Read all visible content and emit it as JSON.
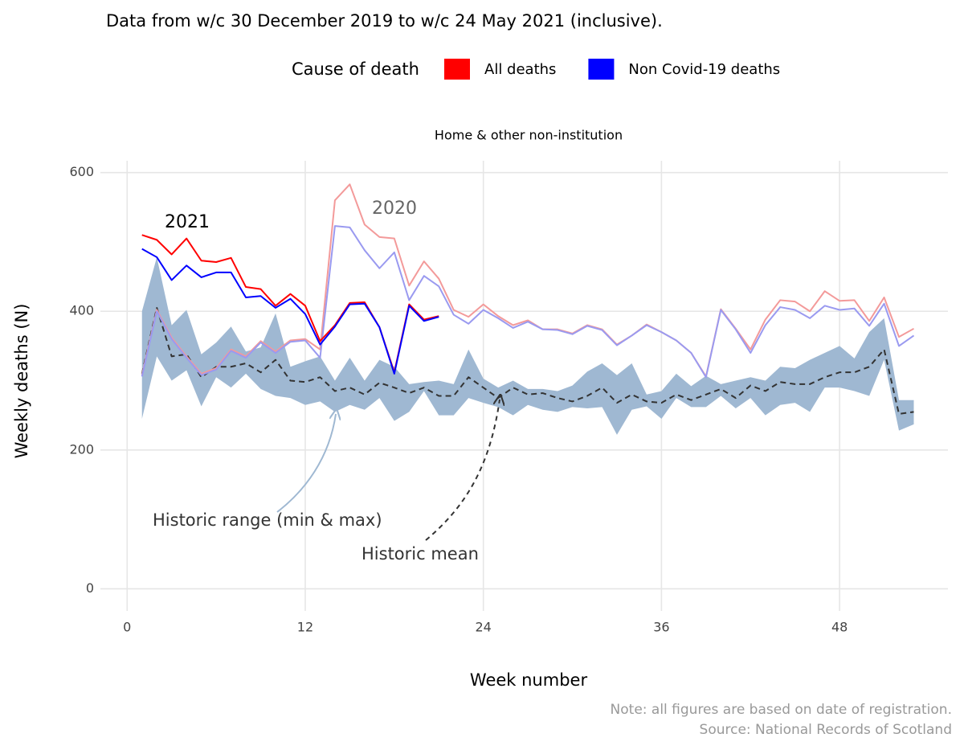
{
  "chart_data": {
    "type": "line",
    "subtitle": "Data from w/c 30 December 2019 to w/c 24 May 2021 (inclusive).",
    "legend_title": "Cause of death",
    "facet": "Home & other non-institution",
    "x_label": "Week number",
    "y_label": "Weekly deaths (N)",
    "notes": [
      "Note: all figures are based on date of registration.",
      "Source: National Records of Scotland"
    ],
    "xlim": [
      -1.8,
      55.3
    ],
    "ylim": [
      -32,
      617
    ],
    "xticks": [
      0,
      12,
      24,
      36,
      48
    ],
    "yticks": [
      0,
      200,
      400,
      600
    ],
    "grid": true,
    "series": [
      {
        "name": "All deaths",
        "label": "2021",
        "color": "#ff0000",
        "x": [
          1,
          2,
          3,
          4,
          5,
          6,
          7,
          8,
          9,
          10,
          11,
          12,
          13,
          14,
          15,
          16,
          17,
          18,
          19,
          20,
          21
        ],
        "values": [
          510,
          503,
          482,
          505,
          473,
          471,
          477,
          435,
          432,
          408,
          425,
          408,
          357,
          380,
          412,
          413,
          377,
          312,
          410,
          388,
          393
        ]
      },
      {
        "name": "Non Covid-19 deaths",
        "color": "#0000ff",
        "x": [
          1,
          2,
          3,
          4,
          5,
          6,
          7,
          8,
          9,
          10,
          11,
          12,
          13,
          14,
          15,
          16,
          17,
          18,
          19,
          20,
          21
        ],
        "values": [
          490,
          478,
          445,
          466,
          449,
          456,
          456,
          420,
          422,
          405,
          418,
          396,
          352,
          378,
          410,
          411,
          377,
          310,
          408,
          386,
          392
        ]
      },
      {
        "label": "2020",
        "color": "#f39a9a",
        "x": [
          1,
          2,
          3,
          4,
          5,
          6,
          7,
          8,
          9,
          10,
          11,
          12,
          13,
          14,
          15,
          16,
          17,
          18,
          19,
          20,
          21,
          22,
          23,
          24,
          25,
          26,
          27,
          28,
          29,
          30,
          31,
          32,
          33,
          34,
          35,
          36,
          37,
          38,
          39,
          40,
          41,
          42,
          43,
          44,
          45,
          46,
          47,
          48,
          49,
          50,
          51,
          52,
          53
        ],
        "values": [
          308,
          402,
          362,
          335,
          310,
          318,
          345,
          335,
          357,
          342,
          358,
          360,
          345,
          560,
          583,
          525,
          507,
          505,
          437,
          472,
          447,
          402,
          392,
          410,
          393,
          380,
          387,
          374,
          374,
          368,
          380,
          374,
          352,
          365,
          381,
          370,
          358,
          340,
          306,
          403,
          375,
          345,
          388,
          416,
          414,
          400,
          429,
          415,
          416,
          386,
          420,
          363,
          375
        ]
      },
      {
        "color": "#9a9af0",
        "x": [
          1,
          2,
          3,
          4,
          5,
          6,
          7,
          8,
          9,
          10,
          11,
          12,
          13,
          14,
          15,
          16,
          17,
          18,
          19,
          20,
          21,
          22,
          23,
          24,
          25,
          26,
          27,
          28,
          29,
          30,
          31,
          32,
          33,
          34,
          35,
          36,
          37,
          38,
          39,
          40,
          41,
          42,
          43,
          44,
          45,
          46,
          47,
          48,
          49,
          50,
          51,
          52,
          53
        ],
        "values": [
          306,
          400,
          360,
          333,
          308,
          316,
          343,
          333,
          355,
          340,
          356,
          358,
          333,
          523,
          521,
          488,
          462,
          485,
          416,
          451,
          436,
          395,
          382,
          402,
          390,
          376,
          385,
          374,
          373,
          367,
          379,
          373,
          351,
          365,
          380,
          370,
          358,
          340,
          305,
          402,
          374,
          340,
          380,
          406,
          402,
          390,
          408,
          402,
          404,
          379,
          411,
          350,
          365
        ]
      }
    ],
    "historic_mean": {
      "label": "Historic mean",
      "color": "#333333",
      "x": [
        1,
        2,
        3,
        4,
        5,
        6,
        7,
        8,
        9,
        10,
        11,
        12,
        13,
        14,
        15,
        16,
        17,
        18,
        19,
        20,
        21,
        22,
        23,
        24,
        25,
        26,
        27,
        28,
        29,
        30,
        31,
        32,
        33,
        34,
        35,
        36,
        37,
        38,
        39,
        40,
        41,
        42,
        43,
        44,
        45,
        46,
        47,
        48,
        49,
        50,
        51,
        52,
        53
      ],
      "values": [
        310,
        405,
        335,
        338,
        305,
        320,
        320,
        325,
        312,
        330,
        300,
        298,
        305,
        285,
        290,
        280,
        297,
        290,
        282,
        290,
        278,
        278,
        305,
        290,
        275,
        290,
        280,
        282,
        275,
        270,
        278,
        290,
        268,
        280,
        270,
        268,
        280,
        272,
        280,
        288,
        275,
        293,
        285,
        298,
        295,
        295,
        305,
        312,
        312,
        320,
        345,
        252,
        255
      ]
    },
    "historic_range": {
      "label": "Historic range (min & max)",
      "color": "#9fb8d2",
      "x": [
        1,
        2,
        3,
        4,
        5,
        6,
        7,
        8,
        9,
        10,
        11,
        12,
        13,
        14,
        15,
        16,
        17,
        18,
        19,
        20,
        21,
        22,
        23,
        24,
        25,
        26,
        27,
        28,
        29,
        30,
        31,
        32,
        33,
        34,
        35,
        36,
        37,
        38,
        39,
        40,
        41,
        42,
        43,
        44,
        45,
        46,
        47,
        48,
        49,
        50,
        51,
        52,
        53
      ],
      "min": [
        245,
        335,
        300,
        315,
        263,
        305,
        290,
        310,
        288,
        278,
        275,
        265,
        270,
        255,
        265,
        258,
        275,
        242,
        255,
        285,
        250,
        250,
        275,
        268,
        262,
        250,
        265,
        258,
        255,
        262,
        260,
        262,
        222,
        258,
        263,
        245,
        275,
        262,
        262,
        278,
        260,
        275,
        250,
        265,
        268,
        255,
        290,
        290,
        285,
        278,
        330,
        228,
        237
      ],
      "max": [
        400,
        478,
        380,
        402,
        338,
        355,
        378,
        342,
        348,
        397,
        320,
        328,
        335,
        300,
        333,
        300,
        330,
        320,
        295,
        298,
        300,
        295,
        345,
        303,
        290,
        300,
        288,
        288,
        285,
        293,
        313,
        325,
        308,
        325,
        280,
        285,
        310,
        292,
        307,
        295,
        300,
        305,
        300,
        320,
        318,
        330,
        340,
        350,
        332,
        370,
        390,
        272,
        272
      ]
    }
  }
}
